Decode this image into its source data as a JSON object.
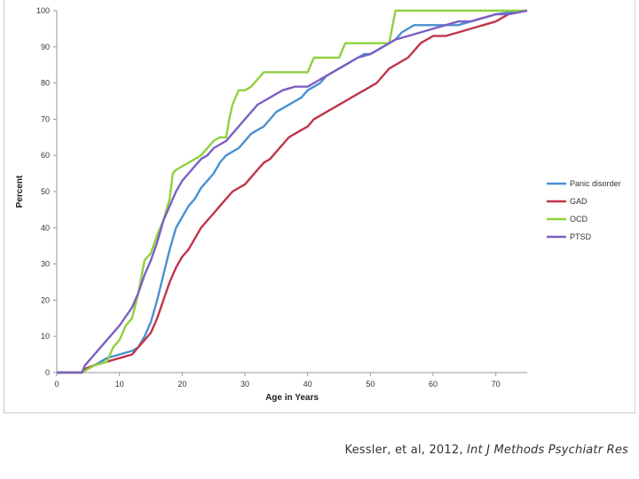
{
  "chart_data": {
    "type": "line",
    "title": "",
    "xlabel": "Age in Years",
    "ylabel": "Percent",
    "xlim": [
      0,
      75
    ],
    "ylim": [
      0,
      100
    ],
    "xticks": [
      0,
      10,
      20,
      30,
      40,
      50,
      60,
      70
    ],
    "yticks": [
      0,
      10,
      20,
      30,
      40,
      50,
      60,
      70,
      80,
      90,
      100
    ],
    "grid": false,
    "legend_position": "right",
    "series": [
      {
        "name": "Panic disorder",
        "color": "#4a90d0",
        "points": [
          [
            0,
            0
          ],
          [
            4,
            0
          ],
          [
            4.5,
            1
          ],
          [
            6,
            2
          ],
          [
            8,
            4
          ],
          [
            10,
            5
          ],
          [
            12,
            6
          ],
          [
            13,
            7
          ],
          [
            14,
            10
          ],
          [
            15,
            14
          ],
          [
            16,
            20
          ],
          [
            17,
            27
          ],
          [
            18,
            34
          ],
          [
            19,
            40
          ],
          [
            20,
            43
          ],
          [
            21,
            46
          ],
          [
            22,
            48
          ],
          [
            23,
            51
          ],
          [
            24,
            53
          ],
          [
            25,
            55
          ],
          [
            26,
            58
          ],
          [
            27,
            60
          ],
          [
            28,
            61
          ],
          [
            29,
            62
          ],
          [
            30,
            64
          ],
          [
            31,
            66
          ],
          [
            32,
            67
          ],
          [
            33,
            68
          ],
          [
            34,
            70
          ],
          [
            35,
            72
          ],
          [
            36,
            73
          ],
          [
            37,
            74
          ],
          [
            38,
            75
          ],
          [
            39,
            76
          ],
          [
            40,
            78
          ],
          [
            41,
            79
          ],
          [
            42,
            80
          ],
          [
            43,
            82
          ],
          [
            44,
            83
          ],
          [
            45,
            84
          ],
          [
            46,
            85
          ],
          [
            47,
            86
          ],
          [
            48,
            87
          ],
          [
            49,
            88
          ],
          [
            50,
            88
          ],
          [
            51,
            89
          ],
          [
            52,
            90
          ],
          [
            53,
            91
          ],
          [
            54,
            92
          ],
          [
            55,
            94
          ],
          [
            56,
            95
          ],
          [
            57,
            96
          ],
          [
            58,
            96
          ],
          [
            60,
            96
          ],
          [
            62,
            96
          ],
          [
            64,
            96
          ],
          [
            66,
            97
          ],
          [
            68,
            98
          ],
          [
            70,
            99
          ],
          [
            72,
            99.5
          ],
          [
            75,
            100
          ]
        ]
      },
      {
        "name": "GAD",
        "color": "#c0354a",
        "points": [
          [
            0,
            0
          ],
          [
            4,
            0
          ],
          [
            4.5,
            1
          ],
          [
            6,
            2
          ],
          [
            8,
            3
          ],
          [
            10,
            4
          ],
          [
            12,
            5
          ],
          [
            13,
            7
          ],
          [
            14,
            9
          ],
          [
            15,
            11
          ],
          [
            16,
            15
          ],
          [
            17,
            20
          ],
          [
            18,
            25
          ],
          [
            19,
            29
          ],
          [
            20,
            32
          ],
          [
            21,
            34
          ],
          [
            22,
            37
          ],
          [
            23,
            40
          ],
          [
            24,
            42
          ],
          [
            25,
            44
          ],
          [
            26,
            46
          ],
          [
            27,
            48
          ],
          [
            28,
            50
          ],
          [
            29,
            51
          ],
          [
            30,
            52
          ],
          [
            31,
            54
          ],
          [
            32,
            56
          ],
          [
            33,
            58
          ],
          [
            34,
            59
          ],
          [
            35,
            61
          ],
          [
            36,
            63
          ],
          [
            37,
            65
          ],
          [
            38,
            66
          ],
          [
            39,
            67
          ],
          [
            40,
            68
          ],
          [
            41,
            70
          ],
          [
            42,
            71
          ],
          [
            43,
            72
          ],
          [
            44,
            73
          ],
          [
            45,
            74
          ],
          [
            46,
            75
          ],
          [
            47,
            76
          ],
          [
            48,
            77
          ],
          [
            49,
            78
          ],
          [
            50,
            79
          ],
          [
            51,
            80
          ],
          [
            52,
            82
          ],
          [
            53,
            84
          ],
          [
            54,
            85
          ],
          [
            55,
            86
          ],
          [
            56,
            87
          ],
          [
            57,
            89
          ],
          [
            58,
            91
          ],
          [
            59,
            92
          ],
          [
            60,
            93
          ],
          [
            62,
            93
          ],
          [
            64,
            94
          ],
          [
            66,
            95
          ],
          [
            68,
            96
          ],
          [
            70,
            97
          ],
          [
            72,
            99
          ],
          [
            75,
            100
          ]
        ]
      },
      {
        "name": "OCD",
        "color": "#8fd13f",
        "points": [
          [
            0,
            0
          ],
          [
            4,
            0
          ],
          [
            4.5,
            0.5
          ],
          [
            6,
            2
          ],
          [
            8,
            3
          ],
          [
            9,
            7
          ],
          [
            10,
            9
          ],
          [
            11,
            13
          ],
          [
            12,
            15
          ],
          [
            13,
            22
          ],
          [
            14,
            31
          ],
          [
            15,
            33
          ],
          [
            16,
            38
          ],
          [
            17,
            42
          ],
          [
            18,
            48
          ],
          [
            18.5,
            55
          ],
          [
            19,
            56
          ],
          [
            20,
            57
          ],
          [
            21,
            58
          ],
          [
            22,
            59
          ],
          [
            23,
            60
          ],
          [
            24,
            62
          ],
          [
            25,
            64
          ],
          [
            26,
            65
          ],
          [
            27,
            65
          ],
          [
            27.5,
            70
          ],
          [
            28,
            74
          ],
          [
            29,
            78
          ],
          [
            30,
            78
          ],
          [
            31,
            79
          ],
          [
            32,
            81
          ],
          [
            33,
            83
          ],
          [
            40,
            83
          ],
          [
            41,
            87
          ],
          [
            45,
            87
          ],
          [
            46,
            91
          ],
          [
            53,
            91
          ],
          [
            54,
            100
          ],
          [
            75,
            100
          ]
        ]
      },
      {
        "name": "PTSD",
        "color": "#7b5fc4",
        "points": [
          [
            0,
            0
          ],
          [
            4,
            0
          ],
          [
            4.5,
            2
          ],
          [
            6,
            5
          ],
          [
            8,
            9
          ],
          [
            10,
            13
          ],
          [
            12,
            18
          ],
          [
            13,
            22
          ],
          [
            14,
            27
          ],
          [
            15,
            31
          ],
          [
            16,
            36
          ],
          [
            17,
            42
          ],
          [
            18,
            46
          ],
          [
            19,
            50
          ],
          [
            20,
            53
          ],
          [
            21,
            55
          ],
          [
            22,
            57
          ],
          [
            23,
            59
          ],
          [
            24,
            60
          ],
          [
            25,
            62
          ],
          [
            26,
            63
          ],
          [
            27,
            64
          ],
          [
            28,
            66
          ],
          [
            29,
            68
          ],
          [
            30,
            70
          ],
          [
            31,
            72
          ],
          [
            32,
            74
          ],
          [
            33,
            75
          ],
          [
            34,
            76
          ],
          [
            35,
            77
          ],
          [
            36,
            78
          ],
          [
            38,
            79
          ],
          [
            40,
            79
          ],
          [
            41,
            80
          ],
          [
            42,
            81
          ],
          [
            43,
            82
          ],
          [
            44,
            83
          ],
          [
            45,
            84
          ],
          [
            46,
            85
          ],
          [
            47,
            86
          ],
          [
            48,
            87
          ],
          [
            50,
            88
          ],
          [
            52,
            90
          ],
          [
            54,
            92
          ],
          [
            56,
            93
          ],
          [
            58,
            94
          ],
          [
            60,
            95
          ],
          [
            62,
            96
          ],
          [
            64,
            97
          ],
          [
            66,
            97
          ],
          [
            68,
            98
          ],
          [
            70,
            99
          ],
          [
            72,
            99
          ],
          [
            75,
            100
          ]
        ]
      }
    ]
  },
  "citation": {
    "authors": "Kessler, et al, 2012,",
    "journal": "Int J Methods Psychiatr Res"
  }
}
